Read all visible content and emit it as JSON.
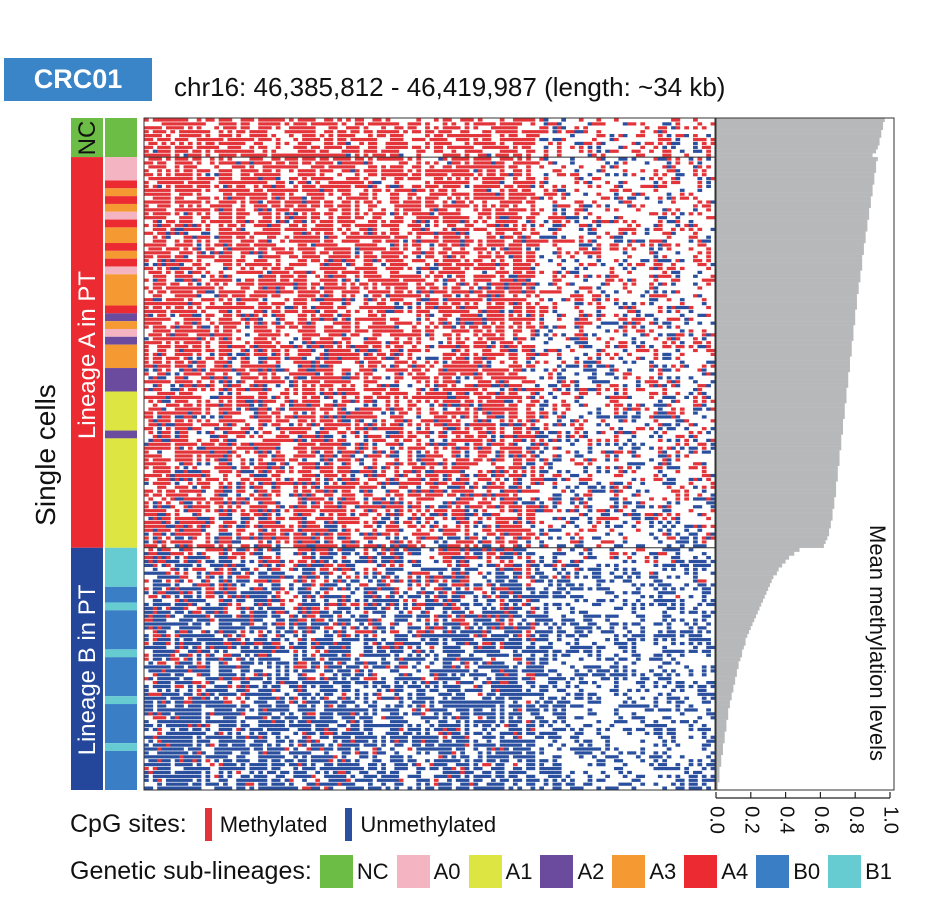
{
  "sample_label": "CRC01",
  "region_label": "chr16: 46,385,812 - 46,419,987 (length: ~34 kb)",
  "y_axis_label": "Single cells",
  "group_labels": {
    "nc": "NC",
    "lineage_a": "Lineage A in PT",
    "lineage_b": "Lineage B in PT"
  },
  "colors": {
    "methylated": "#e3343a",
    "unmethylated": "#2a4f9e",
    "nc": "#6cbd45",
    "a0": "#f5b4c2",
    "a1": "#dde543",
    "a2": "#6a4b9e",
    "a3": "#f59a32",
    "a4": "#ec2a32",
    "b0": "#3a7fc5",
    "b1": "#66ccd2",
    "lineage_a": "#ec2a32",
    "lineage_b": "#24479b",
    "mean_bar": "#b7b8ba"
  },
  "legend": {
    "cpg_title": "CpG sites:",
    "cpg_items": [
      {
        "label": "Methylated",
        "color": "#e3343a"
      },
      {
        "label": "Unmethylated",
        "color": "#2a4f9e"
      }
    ],
    "sub_title": "Genetic sub-lineages:",
    "sub_items": [
      {
        "label": "NC",
        "color": "#6cbd45"
      },
      {
        "label": "A0",
        "color": "#f5b4c2"
      },
      {
        "label": "A1",
        "color": "#dde543"
      },
      {
        "label": "A2",
        "color": "#6a4b9e"
      },
      {
        "label": "A3",
        "color": "#f59a32"
      },
      {
        "label": "A4",
        "color": "#ec2a32"
      },
      {
        "label": "B0",
        "color": "#3a7fc5"
      },
      {
        "label": "B1",
        "color": "#66ccd2"
      }
    ]
  },
  "chart_data": {
    "type": "heatmap",
    "x_axis_label": "Mean methylation levels",
    "x_ticks": [
      "0.0",
      "0.2",
      "0.4",
      "0.6",
      "0.8",
      "1.0"
    ],
    "xlim": [
      0,
      1
    ],
    "groups": [
      {
        "name": "NC",
        "cells": 10
      },
      {
        "name": "Lineage A in PT",
        "cells": 100
      },
      {
        "name": "Lineage B in PT",
        "cells": 62
      }
    ],
    "sublineage_segments": [
      {
        "group": "NC",
        "sub": "NC",
        "cells": 10
      },
      {
        "group": "Lineage A in PT",
        "sub": "A0",
        "cells": 6
      },
      {
        "group": "Lineage A in PT",
        "sub": "A4",
        "cells": 2
      },
      {
        "group": "Lineage A in PT",
        "sub": "A3",
        "cells": 2
      },
      {
        "group": "Lineage A in PT",
        "sub": "A4",
        "cells": 2
      },
      {
        "group": "Lineage A in PT",
        "sub": "A3",
        "cells": 2
      },
      {
        "group": "Lineage A in PT",
        "sub": "A0",
        "cells": 2
      },
      {
        "group": "Lineage A in PT",
        "sub": "A4",
        "cells": 2
      },
      {
        "group": "Lineage A in PT",
        "sub": "A3",
        "cells": 4
      },
      {
        "group": "Lineage A in PT",
        "sub": "A4",
        "cells": 2
      },
      {
        "group": "Lineage A in PT",
        "sub": "A3",
        "cells": 2
      },
      {
        "group": "Lineage A in PT",
        "sub": "A4",
        "cells": 2
      },
      {
        "group": "Lineage A in PT",
        "sub": "A0",
        "cells": 2
      },
      {
        "group": "Lineage A in PT",
        "sub": "A3",
        "cells": 8
      },
      {
        "group": "Lineage A in PT",
        "sub": "A4",
        "cells": 2
      },
      {
        "group": "Lineage A in PT",
        "sub": "A2",
        "cells": 2
      },
      {
        "group": "Lineage A in PT",
        "sub": "A3",
        "cells": 2
      },
      {
        "group": "Lineage A in PT",
        "sub": "A0",
        "cells": 2
      },
      {
        "group": "Lineage A in PT",
        "sub": "A2",
        "cells": 2
      },
      {
        "group": "Lineage A in PT",
        "sub": "A3",
        "cells": 6
      },
      {
        "group": "Lineage A in PT",
        "sub": "A2",
        "cells": 6
      },
      {
        "group": "Lineage A in PT",
        "sub": "A1",
        "cells": 10
      },
      {
        "group": "Lineage A in PT",
        "sub": "A2",
        "cells": 2
      },
      {
        "group": "Lineage A in PT",
        "sub": "A1",
        "cells": 28
      },
      {
        "group": "Lineage B in PT",
        "sub": "B1",
        "cells": 10
      },
      {
        "group": "Lineage B in PT",
        "sub": "B0",
        "cells": 4
      },
      {
        "group": "Lineage B in PT",
        "sub": "B1",
        "cells": 2
      },
      {
        "group": "Lineage B in PT",
        "sub": "B0",
        "cells": 10
      },
      {
        "group": "Lineage B in PT",
        "sub": "B1",
        "cells": 2
      },
      {
        "group": "Lineage B in PT",
        "sub": "B0",
        "cells": 10
      },
      {
        "group": "Lineage B in PT",
        "sub": "B1",
        "cells": 2
      },
      {
        "group": "Lineage B in PT",
        "sub": "B0",
        "cells": 10
      },
      {
        "group": "Lineage B in PT",
        "sub": "B1",
        "cells": 2
      },
      {
        "group": "Lineage B in PT",
        "sub": "B0",
        "cells": 10
      }
    ],
    "mean_methylation": {
      "NC": [
        0.97,
        0.96,
        0.96,
        0.95,
        0.95,
        0.94,
        0.94,
        0.93,
        0.92,
        0.9
      ],
      "Lineage A in PT": [
        0.93,
        0.92,
        0.92,
        0.92,
        0.91,
        0.91,
        0.91,
        0.9,
        0.9,
        0.9,
        0.89,
        0.89,
        0.89,
        0.88,
        0.88,
        0.88,
        0.87,
        0.87,
        0.87,
        0.86,
        0.86,
        0.86,
        0.85,
        0.85,
        0.85,
        0.84,
        0.84,
        0.84,
        0.84,
        0.83,
        0.83,
        0.83,
        0.82,
        0.82,
        0.82,
        0.81,
        0.81,
        0.81,
        0.81,
        0.8,
        0.8,
        0.8,
        0.8,
        0.79,
        0.79,
        0.79,
        0.79,
        0.78,
        0.78,
        0.78,
        0.78,
        0.77,
        0.77,
        0.77,
        0.77,
        0.76,
        0.76,
        0.76,
        0.76,
        0.75,
        0.75,
        0.75,
        0.75,
        0.74,
        0.74,
        0.74,
        0.74,
        0.73,
        0.73,
        0.73,
        0.73,
        0.72,
        0.72,
        0.72,
        0.72,
        0.71,
        0.71,
        0.71,
        0.71,
        0.7,
        0.7,
        0.7,
        0.7,
        0.69,
        0.69,
        0.69,
        0.69,
        0.68,
        0.68,
        0.68,
        0.67,
        0.67,
        0.67,
        0.66,
        0.66,
        0.65,
        0.65,
        0.64,
        0.63,
        0.62
      ],
      "Lineage B in PT": [
        0.48,
        0.45,
        0.42,
        0.4,
        0.38,
        0.36,
        0.35,
        0.33,
        0.32,
        0.31,
        0.3,
        0.29,
        0.28,
        0.27,
        0.26,
        0.25,
        0.24,
        0.23,
        0.22,
        0.21,
        0.2,
        0.19,
        0.18,
        0.17,
        0.17,
        0.16,
        0.15,
        0.15,
        0.14,
        0.13,
        0.13,
        0.12,
        0.12,
        0.11,
        0.11,
        0.1,
        0.1,
        0.09,
        0.09,
        0.08,
        0.08,
        0.07,
        0.07,
        0.07,
        0.06,
        0.06,
        0.06,
        0.05,
        0.05,
        0.05,
        0.04,
        0.04,
        0.04,
        0.03,
        0.03,
        0.03,
        0.02,
        0.02,
        0.02,
        0.02,
        0.01,
        0.01
      ]
    },
    "cpg_sites": 130
  }
}
